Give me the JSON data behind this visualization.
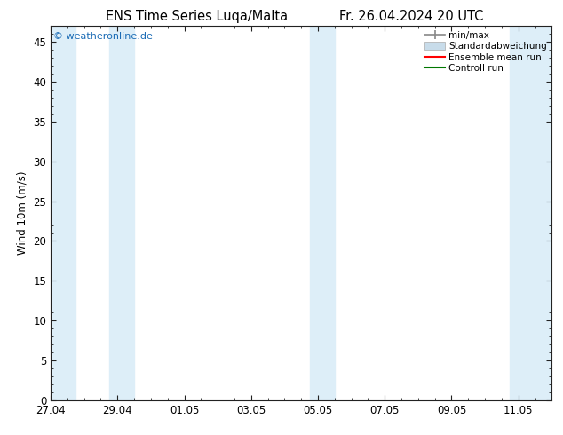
{
  "title_left": "ENS Time Series Luqa/Malta",
  "title_right": "Fr. 26.04.2024 20 UTC",
  "ylabel": "Wind 10m (m/s)",
  "xlabel_ticks": [
    "27.04",
    "29.04",
    "01.05",
    "03.05",
    "05.05",
    "07.05",
    "09.05",
    "11.05"
  ],
  "tick_positions": [
    0,
    2,
    4,
    6,
    8,
    10,
    12,
    14
  ],
  "xlim": [
    0,
    15.0
  ],
  "ylim": [
    0,
    47
  ],
  "yticks": [
    0,
    5,
    10,
    15,
    20,
    25,
    30,
    35,
    40,
    45
  ],
  "background_color": "#ffffff",
  "plot_bg_color": "#ffffff",
  "shaded_band_color": "#ddeef8",
  "watermark_text": "© weatheronline.de",
  "watermark_color": "#1a6bb5",
  "legend_items": [
    {
      "label": "min/max",
      "color": "#999999"
    },
    {
      "label": "Standardabweichung",
      "color": "#c8dcea"
    },
    {
      "label": "Ensemble mean run",
      "color": "#ff0000"
    },
    {
      "label": "Controll run",
      "color": "#007700"
    }
  ],
  "shaded_regions": [
    {
      "x_start": 0.0,
      "x_end": 0.75
    },
    {
      "x_start": 1.75,
      "x_end": 2.5
    },
    {
      "x_start": 7.75,
      "x_end": 8.5
    },
    {
      "x_start": 13.75,
      "x_end": 15.0
    }
  ],
  "axis_color": "#222222",
  "font_size": 8.5,
  "title_font_size": 10.5
}
